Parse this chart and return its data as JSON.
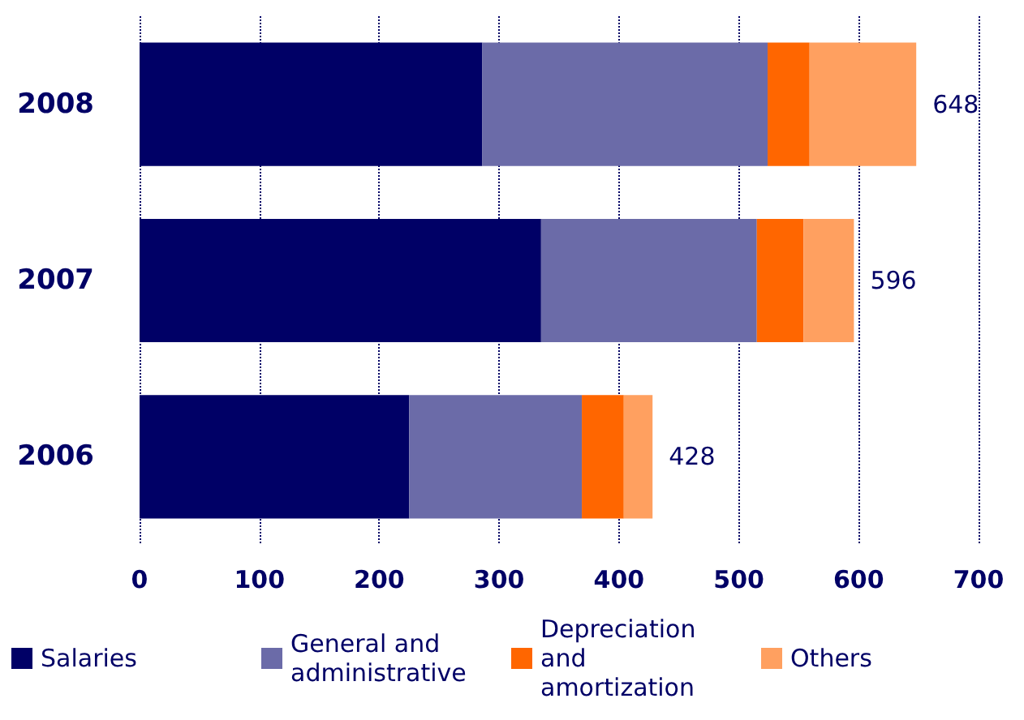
{
  "chart_data": {
    "type": "bar",
    "orientation": "horizontal",
    "stacked": true,
    "categories": [
      "2008",
      "2007",
      "2006"
    ],
    "series": [
      {
        "name": "Salaries",
        "color": "#000066",
        "values": [
          286,
          335,
          225
        ]
      },
      {
        "name": "General and administrative",
        "color": "#6b6ba8",
        "values": [
          238,
          180,
          144
        ]
      },
      {
        "name": "Depreciation and amortization",
        "color": "#ff6600",
        "values": [
          35,
          39,
          35
        ]
      },
      {
        "name": "Others",
        "color": "#ffa060",
        "values": [
          89,
          42,
          24
        ]
      }
    ],
    "totals": [
      "648",
      "596",
      "428"
    ],
    "xlim": [
      0,
      700
    ],
    "xticks": [
      0,
      100,
      200,
      300,
      400,
      500,
      600,
      700
    ],
    "grid": "x",
    "legend": "bottom"
  }
}
